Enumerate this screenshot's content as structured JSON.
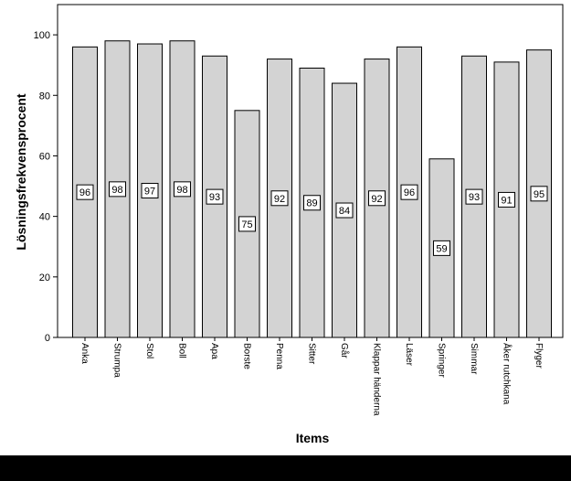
{
  "chart_data": {
    "type": "bar",
    "categories": [
      "Anka",
      "Strumpa",
      "Stol",
      "Boll",
      "Apa",
      "Borste",
      "Penna",
      "Sitter",
      "Går",
      "Klappar händerna",
      "Läser",
      "Springer",
      "Simmar",
      "Åker rutchkana",
      "Flyger"
    ],
    "values": [
      96,
      98,
      97,
      98,
      93,
      75,
      92,
      89,
      84,
      92,
      96,
      59,
      93,
      91,
      95
    ],
    "title": "",
    "xlabel": "Items",
    "ylabel": "Lösningsfrekvensprocent",
    "ylim": [
      0,
      110
    ],
    "yticks": [
      0,
      20,
      40,
      60,
      80,
      100
    ],
    "grid": false,
    "legend": "none",
    "colors": {
      "bar_fill": "#d3d3d3",
      "bar_stroke": "#000000",
      "bottom_bar": "#000000"
    }
  }
}
